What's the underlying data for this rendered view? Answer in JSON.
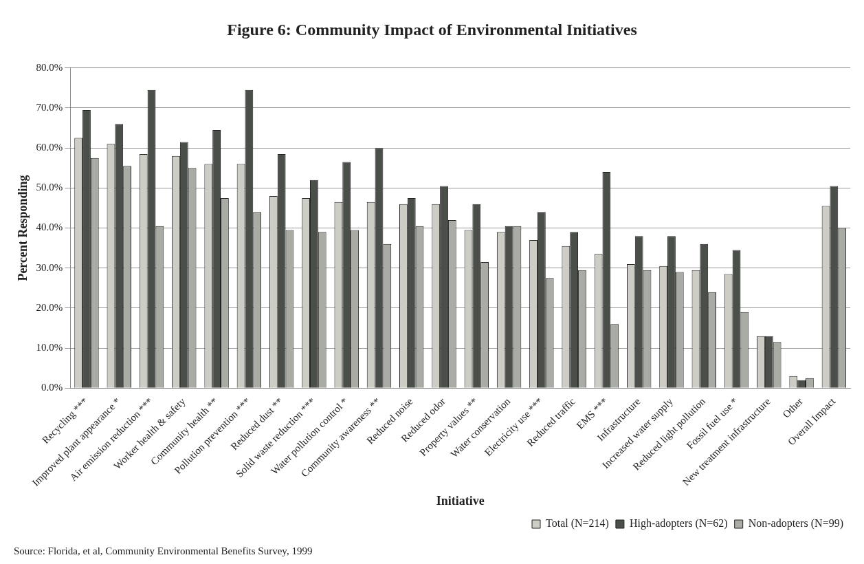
{
  "chart_data": {
    "type": "bar",
    "title": "Figure 6: Community Impact of Environmental Initiatives",
    "xlabel": "Initiative",
    "ylabel": "Percent Responding",
    "categories": [
      "Recycling ***",
      "Improved plant appearance *",
      "Air emission reduction ***",
      "Worker health & safety",
      "Community health **",
      "Pollution prevention ***",
      "Reduced dust **",
      "Solid waste reduction ***",
      "Water pollution control *",
      "Community awareness **",
      "Reduced noise",
      "Reduced odor",
      "Property values **",
      "Water conservation",
      "Electricity use ***",
      "Reduced traffic",
      "EMS ***",
      "Infrastructure",
      "Increased water supply",
      "Reduced light pollution",
      "Fossil fuel use *",
      "New treatment infrastructure",
      "Other",
      "Overall Impact"
    ],
    "series": [
      {
        "name": "Total (N=214)",
        "color": "#cdcdc6",
        "values": [
          62.5,
          61,
          58.5,
          58,
          56,
          56,
          48,
          47.5,
          46.5,
          46.5,
          46,
          46,
          39.5,
          39,
          37,
          35.5,
          33.5,
          31,
          30.5,
          29.5,
          28.5,
          13,
          3,
          45.5
        ]
      },
      {
        "name": "High-adopters (N=62)",
        "color": "#4a4f4a",
        "values": [
          69.5,
          66,
          74.5,
          61.5,
          64.5,
          74.5,
          58.5,
          52,
          56.5,
          60,
          47.5,
          50.5,
          46,
          40.5,
          44,
          39,
          54,
          38,
          38,
          36,
          34.5,
          13,
          2,
          50.5
        ]
      },
      {
        "name": "Non-adopters (N=99)",
        "color": "#a9aba5",
        "values": [
          57.5,
          55.5,
          40.5,
          55,
          47.5,
          44,
          39.5,
          39,
          39.5,
          36,
          40.5,
          42,
          31.5,
          40.5,
          27.5,
          29.5,
          16,
          29.5,
          29,
          24,
          19,
          11.5,
          2.5,
          40
        ]
      }
    ],
    "ylim": [
      0,
      80
    ],
    "yticks": [
      {
        "value": 0,
        "label": "0.0%"
      },
      {
        "value": 10,
        "label": "10.0%"
      },
      {
        "value": 20,
        "label": "20.0%"
      },
      {
        "value": 30,
        "label": "30.0%"
      },
      {
        "value": 40,
        "label": "40.0%"
      },
      {
        "value": 50,
        "label": "50.0%"
      },
      {
        "value": 60,
        "label": "60.0%"
      },
      {
        "value": 70,
        "label": "70.0%"
      },
      {
        "value": 80,
        "label": "80.0%"
      }
    ],
    "grid": "y",
    "legend": "bottom right",
    "annotations": [
      "Source: Florida, et al, Community Environmental Benefits Survey, 1999"
    ]
  }
}
